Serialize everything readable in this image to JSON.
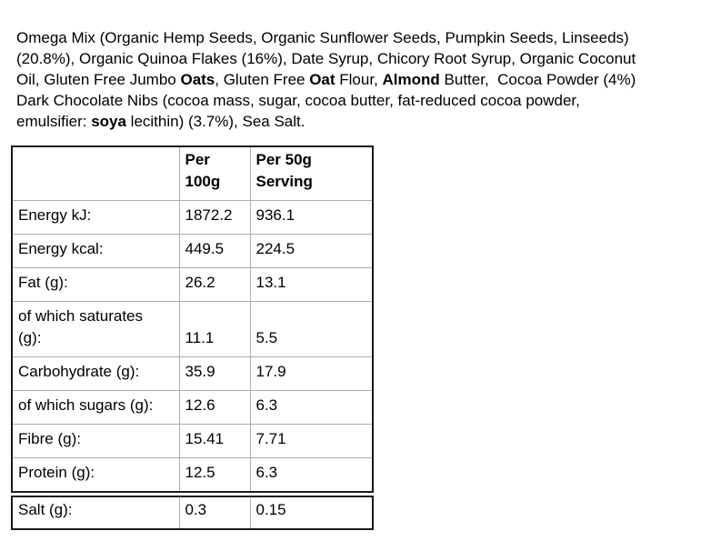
{
  "page": {
    "background_color": "#ffffff",
    "text_color": "#000000",
    "table_outer_border_color": "#1a1a1a",
    "table_grid_color": "#aeaeae"
  },
  "ingredients": {
    "lines": [
      [
        {
          "t": "Omega Mix (Organic Hemp Seeds, Organic Sunflower Seeds, Pumpkin Seeds, Linseeds)",
          "b": false
        }
      ],
      [
        {
          "t": "(20.8%), Organic Quinoa Flakes (16%), Date Syrup, Chicory Root Syrup, Organic Coconut",
          "b": false
        }
      ],
      [
        {
          "t": "Oil, Gluten Free Jumbo ",
          "b": false
        },
        {
          "t": "Oats",
          "b": true
        },
        {
          "t": ", Gluten Free ",
          "b": false
        },
        {
          "t": "Oat",
          "b": true
        },
        {
          "t": " Flour, ",
          "b": false
        },
        {
          "t": "Almond",
          "b": true
        },
        {
          "t": " Butter,  Cocoa Powder (4%)",
          "b": false
        }
      ],
      [
        {
          "t": "Dark Chocolate Nibs (cocoa mass, sugar, cocoa butter, fat-reduced cocoa powder,",
          "b": false
        }
      ],
      [
        {
          "t": "emulsifier: ",
          "b": false
        },
        {
          "t": "soya",
          "b": true
        },
        {
          "t": " lecithin) (3.7%), Sea Salt.",
          "b": false
        }
      ]
    ]
  },
  "nutrition_table": {
    "columns": [
      "",
      "Per 100g",
      "Per 50g Serving"
    ],
    "rows": [
      {
        "label": "Energy kJ:",
        "per_100g": "1872.2",
        "per_50g": "936.1"
      },
      {
        "label": "Energy kcal:",
        "per_100g": "449.5",
        "per_50g": "224.5"
      },
      {
        "label": "Fat (g):",
        "per_100g": "26.2",
        "per_50g": "13.1"
      },
      {
        "label": "of which saturates (g):",
        "per_100g": "11.1",
        "per_50g": "5.5"
      },
      {
        "label": "Carbohydrate (g):",
        "per_100g": "35.9",
        "per_50g": "17.9"
      },
      {
        "label": "of which sugars (g):",
        "per_100g": "12.6",
        "per_50g": "6.3"
      },
      {
        "label": "Fibre (g):",
        "per_100g": "15.41",
        "per_50g": "7.71"
      },
      {
        "label": "Protein (g):",
        "per_100g": "12.5",
        "per_50g": "6.3"
      }
    ],
    "salt_row": {
      "label": "Salt (g):",
      "per_100g": "0.3",
      "per_50g": "0.15"
    }
  }
}
